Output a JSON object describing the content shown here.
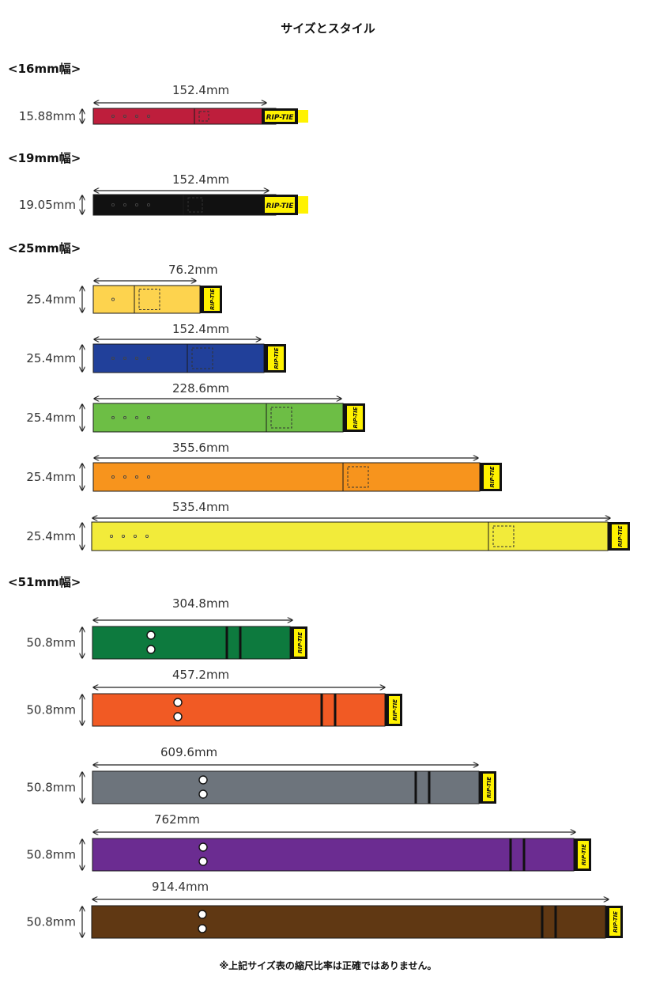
{
  "title": "サイズとスタイル",
  "note": "※上記サイズ表の縮尺比率は正確ではありません。",
  "logo_text": "RIP-TIE",
  "sections": [
    {
      "heading": "<16mm幅>",
      "straps": [
        {
          "length": "152.4mm",
          "width": "15.88mm",
          "color": "#be1e3c",
          "style": "small"
        }
      ]
    },
    {
      "heading": "<19mm幅>",
      "straps": [
        {
          "length": "152.4mm",
          "width": "19.05mm",
          "color": "#111111",
          "style": "small"
        }
      ]
    },
    {
      "heading": "<25mm幅>",
      "straps": [
        {
          "length": "76.2mm",
          "width": "25.4mm",
          "color": "#fdd34e",
          "style": "small"
        },
        {
          "length": "152.4mm",
          "width": "25.4mm",
          "color": "#21409a",
          "style": "small"
        },
        {
          "length": "228.6mm",
          "width": "25.4mm",
          "color": "#6dbe45",
          "style": "small"
        },
        {
          "length": "355.6mm",
          "width": "25.4mm",
          "color": "#f7941d",
          "style": "small"
        },
        {
          "length": "535.4mm",
          "width": "25.4mm",
          "color": "#f2eb3a",
          "style": "small"
        }
      ]
    },
    {
      "heading": "<51mm幅>",
      "straps": [
        {
          "length": "304.8mm",
          "width": "50.8mm",
          "color": "#0d7a3e",
          "style": "large"
        },
        {
          "length": "457.2mm",
          "width": "50.8mm",
          "color": "#f15a24",
          "style": "large"
        },
        {
          "length": "609.6mm",
          "width": "50.8mm",
          "color": "#6d747c",
          "style": "large"
        },
        {
          "length": "762mm",
          "width": "50.8mm",
          "color": "#6b2c91",
          "style": "large"
        },
        {
          "length": "914.4mm",
          "width": "50.8mm",
          "color": "#603813",
          "style": "large"
        }
      ]
    }
  ],
  "colors": {
    "tab": "#111111",
    "logo_bg": "#fff200",
    "outline": "#1a1a1a"
  }
}
